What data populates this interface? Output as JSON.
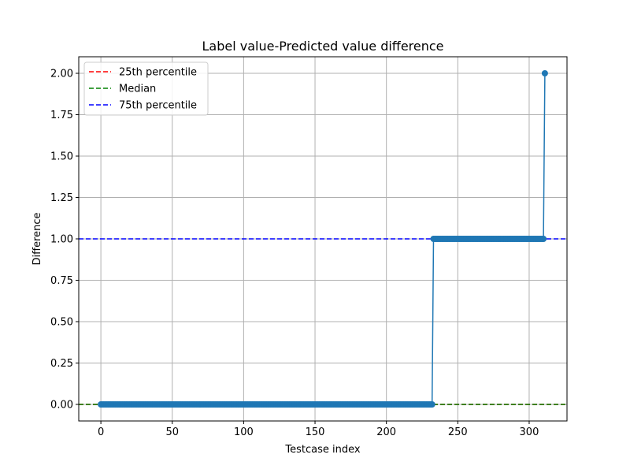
{
  "chart_data": {
    "type": "line",
    "title": "Label value-Predicted value difference",
    "xlabel": "Testcase index",
    "ylabel": "Difference",
    "xlim": [
      -15.5,
      326.5
    ],
    "ylim": [
      -0.1,
      2.1
    ],
    "xticks": [
      0,
      50,
      100,
      150,
      200,
      250,
      300
    ],
    "yticks": [
      0.0,
      0.25,
      0.5,
      0.75,
      1.0,
      1.25,
      1.5,
      1.75,
      2.0
    ],
    "ytick_labels": [
      "0.00",
      "0.25",
      "0.50",
      "0.75",
      "1.00",
      "1.25",
      "1.50",
      "1.75",
      "2.00"
    ],
    "grid": true,
    "legend_position": "top-left",
    "series": [
      {
        "name": "",
        "color": "#1f77b4",
        "marker": "circle",
        "segments": [
          {
            "x_start": 0,
            "x_end": 232,
            "y": 0
          },
          {
            "x_start": 233,
            "x_end": 310,
            "y": 1
          },
          {
            "x_start": 311,
            "x_end": 311,
            "y": 2
          }
        ]
      }
    ],
    "reference_lines": [
      {
        "name": "25th percentile",
        "y": 0,
        "color": "#ff0000",
        "style": "dashed"
      },
      {
        "name": "Median",
        "y": 0,
        "color": "#008000",
        "style": "dashed"
      },
      {
        "name": "75th percentile",
        "y": 1,
        "color": "#0000ff",
        "style": "dashed"
      }
    ]
  }
}
